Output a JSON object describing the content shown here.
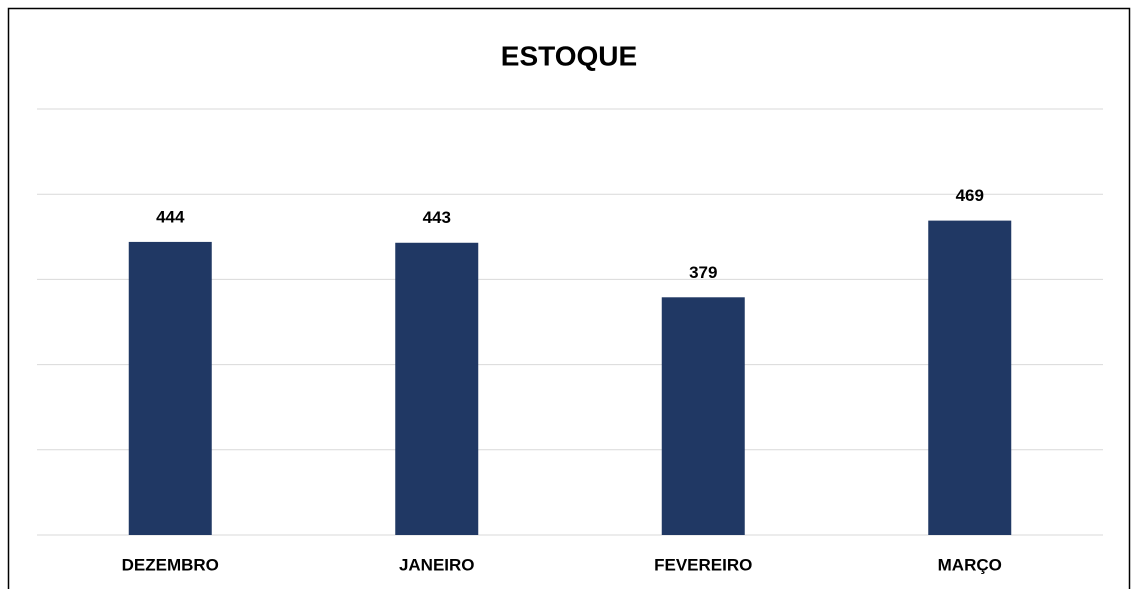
{
  "chart_data": {
    "type": "bar",
    "title": "ESTOQUE",
    "categories": [
      "DEZEMBRO",
      "JANEIRO",
      "FEVEREIRO",
      "MARÇO"
    ],
    "values": [
      444,
      443,
      379,
      469
    ],
    "color": "#203864",
    "ylim": [
      100,
      600
    ],
    "yticks": [
      100,
      200,
      300,
      400,
      500,
      600
    ],
    "grid": true
  }
}
